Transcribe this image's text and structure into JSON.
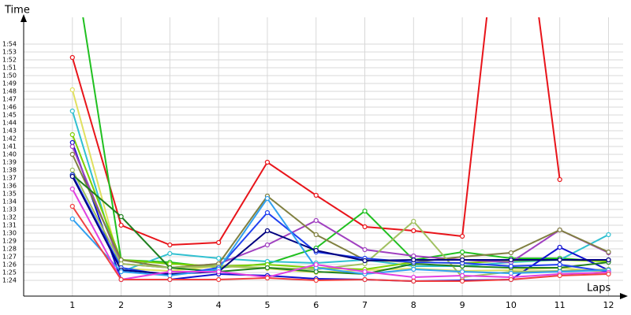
{
  "chart_data": {
    "type": "line",
    "x_label": "Laps",
    "y_label": "Time",
    "x": [
      1,
      2,
      3,
      4,
      5,
      6,
      7,
      8,
      9,
      10,
      11,
      12
    ],
    "xlim": [
      0,
      12.3
    ],
    "xticks": [
      1,
      2,
      3,
      4,
      5,
      6,
      7,
      8,
      9,
      10,
      11,
      12
    ],
    "ylim": [
      82,
      117.4
    ],
    "yticks": [
      {
        "value": 84,
        "label": "1:24"
      },
      {
        "value": 85,
        "label": "1:25"
      },
      {
        "value": 86,
        "label": "1:26"
      },
      {
        "value": 87,
        "label": "1:27"
      },
      {
        "value": 88,
        "label": "1:28"
      },
      {
        "value": 89,
        "label": "1:29"
      },
      {
        "value": 90,
        "label": "1:30"
      },
      {
        "value": 91,
        "label": "1:31"
      },
      {
        "value": 92,
        "label": "1:32"
      },
      {
        "value": 93,
        "label": "1:33"
      },
      {
        "value": 94,
        "label": "1:34"
      },
      {
        "value": 95,
        "label": "1:35"
      },
      {
        "value": 96,
        "label": "1:36"
      },
      {
        "value": 97,
        "label": "1:37"
      },
      {
        "value": 98,
        "label": "1:38"
      },
      {
        "value": 99,
        "label": "1:39"
      },
      {
        "value": 100,
        "label": "1:40"
      },
      {
        "value": 101,
        "label": "1:41"
      },
      {
        "value": 102,
        "label": "1:42"
      },
      {
        "value": 103,
        "label": "1:43"
      },
      {
        "value": 104,
        "label": "1:44"
      },
      {
        "value": 105,
        "label": "1:45"
      },
      {
        "value": 106,
        "label": "1:46"
      },
      {
        "value": 107,
        "label": "1:47"
      },
      {
        "value": 108,
        "label": "1:48"
      },
      {
        "value": 109,
        "label": "1:49"
      },
      {
        "value": 110,
        "label": "1:50"
      },
      {
        "value": 111,
        "label": "1:51"
      },
      {
        "value": 112,
        "label": "1:52"
      },
      {
        "value": 113,
        "label": "1:53"
      },
      {
        "value": 114,
        "label": "1:54"
      }
    ],
    "grid": true,
    "series": [
      {
        "color": "#e8141a",
        "values": [
          112.3,
          91.0,
          88.5,
          88.8,
          99.0,
          94.8,
          90.8,
          90.3,
          89.6,
          145,
          96.8,
          null
        ]
      },
      {
        "color": "#20c020",
        "values": [
          126,
          86.6,
          86.3,
          85.6,
          86.1,
          88.1,
          92.8,
          86.6,
          87.6,
          86.8,
          86.8,
          86.4
        ]
      },
      {
        "color": "#e0e060",
        "values": [
          108.2,
          85.5,
          85.2,
          85.8,
          85.5,
          85.0,
          85.3,
          85.5,
          85.2,
          85.3,
          85.6,
          85.0
        ]
      },
      {
        "color": "#30c0d0",
        "values": [
          105.5,
          85.1,
          87.4,
          86.8,
          86.4,
          86.2,
          86.6,
          85.8,
          85.8,
          86.3,
          86.6,
          89.8
        ]
      },
      {
        "color": "#80d000",
        "values": [
          102.5,
          86.6,
          86.1,
          85.8,
          86.0,
          85.6,
          85.4,
          86.3,
          86.2,
          86.5,
          86.6,
          86.4
        ]
      },
      {
        "color": "#1010d0",
        "values": [
          101.5,
          84.1,
          84.1,
          84.8,
          84.6,
          84.2,
          84.1,
          83.9,
          84.0,
          84.1,
          88.2,
          85.3
        ]
      },
      {
        "color": "#a040c0",
        "values": [
          101.0,
          86.1,
          85.6,
          86.1,
          88.5,
          91.6,
          87.9,
          87.1,
          86.6,
          86.3,
          90.4,
          87.5
        ]
      },
      {
        "color": "#808040",
        "values": [
          100.0,
          86.6,
          85.6,
          86.1,
          94.7,
          89.8,
          86.6,
          86.3,
          87.0,
          87.5,
          90.4,
          87.6
        ]
      },
      {
        "color": "#a0c060",
        "values": [
          98.0,
          86.1,
          85.6,
          85.8,
          85.6,
          85.4,
          86.1,
          91.5,
          84.4,
          85.1,
          85.2,
          85.4
        ]
      },
      {
        "color": "#208020",
        "values": [
          97.4,
          92.1,
          85.6,
          85.1,
          85.6,
          85.1,
          84.8,
          86.1,
          85.8,
          85.6,
          85.6,
          86.3
        ]
      },
      {
        "color": "#2040f0",
        "values": [
          97.4,
          85.6,
          84.6,
          85.6,
          92.6,
          87.6,
          86.8,
          86.3,
          86.2,
          85.8,
          86.0,
          85.1
        ]
      },
      {
        "color": "#000080",
        "values": [
          97.2,
          85.3,
          84.8,
          85.1,
          90.3,
          87.8,
          86.5,
          86.6,
          86.6,
          86.6,
          86.6,
          86.6
        ]
      },
      {
        "color": "#30a0f0",
        "values": [
          91.8,
          85.1,
          84.6,
          85.4,
          94.4,
          85.6,
          84.8,
          85.4,
          85.1,
          84.9,
          85.1,
          85.3
        ]
      },
      {
        "color": "#e040e0",
        "values": [
          95.6,
          84.1,
          85.1,
          85.1,
          84.4,
          86.0,
          85.1,
          84.4,
          84.6,
          84.4,
          84.8,
          85.0
        ]
      },
      {
        "color": "#f04040",
        "values": [
          93.4,
          84.1,
          84.1,
          84.1,
          84.3,
          84.0,
          84.1,
          83.9,
          83.9,
          84.1,
          84.6,
          84.8
        ]
      }
    ]
  }
}
